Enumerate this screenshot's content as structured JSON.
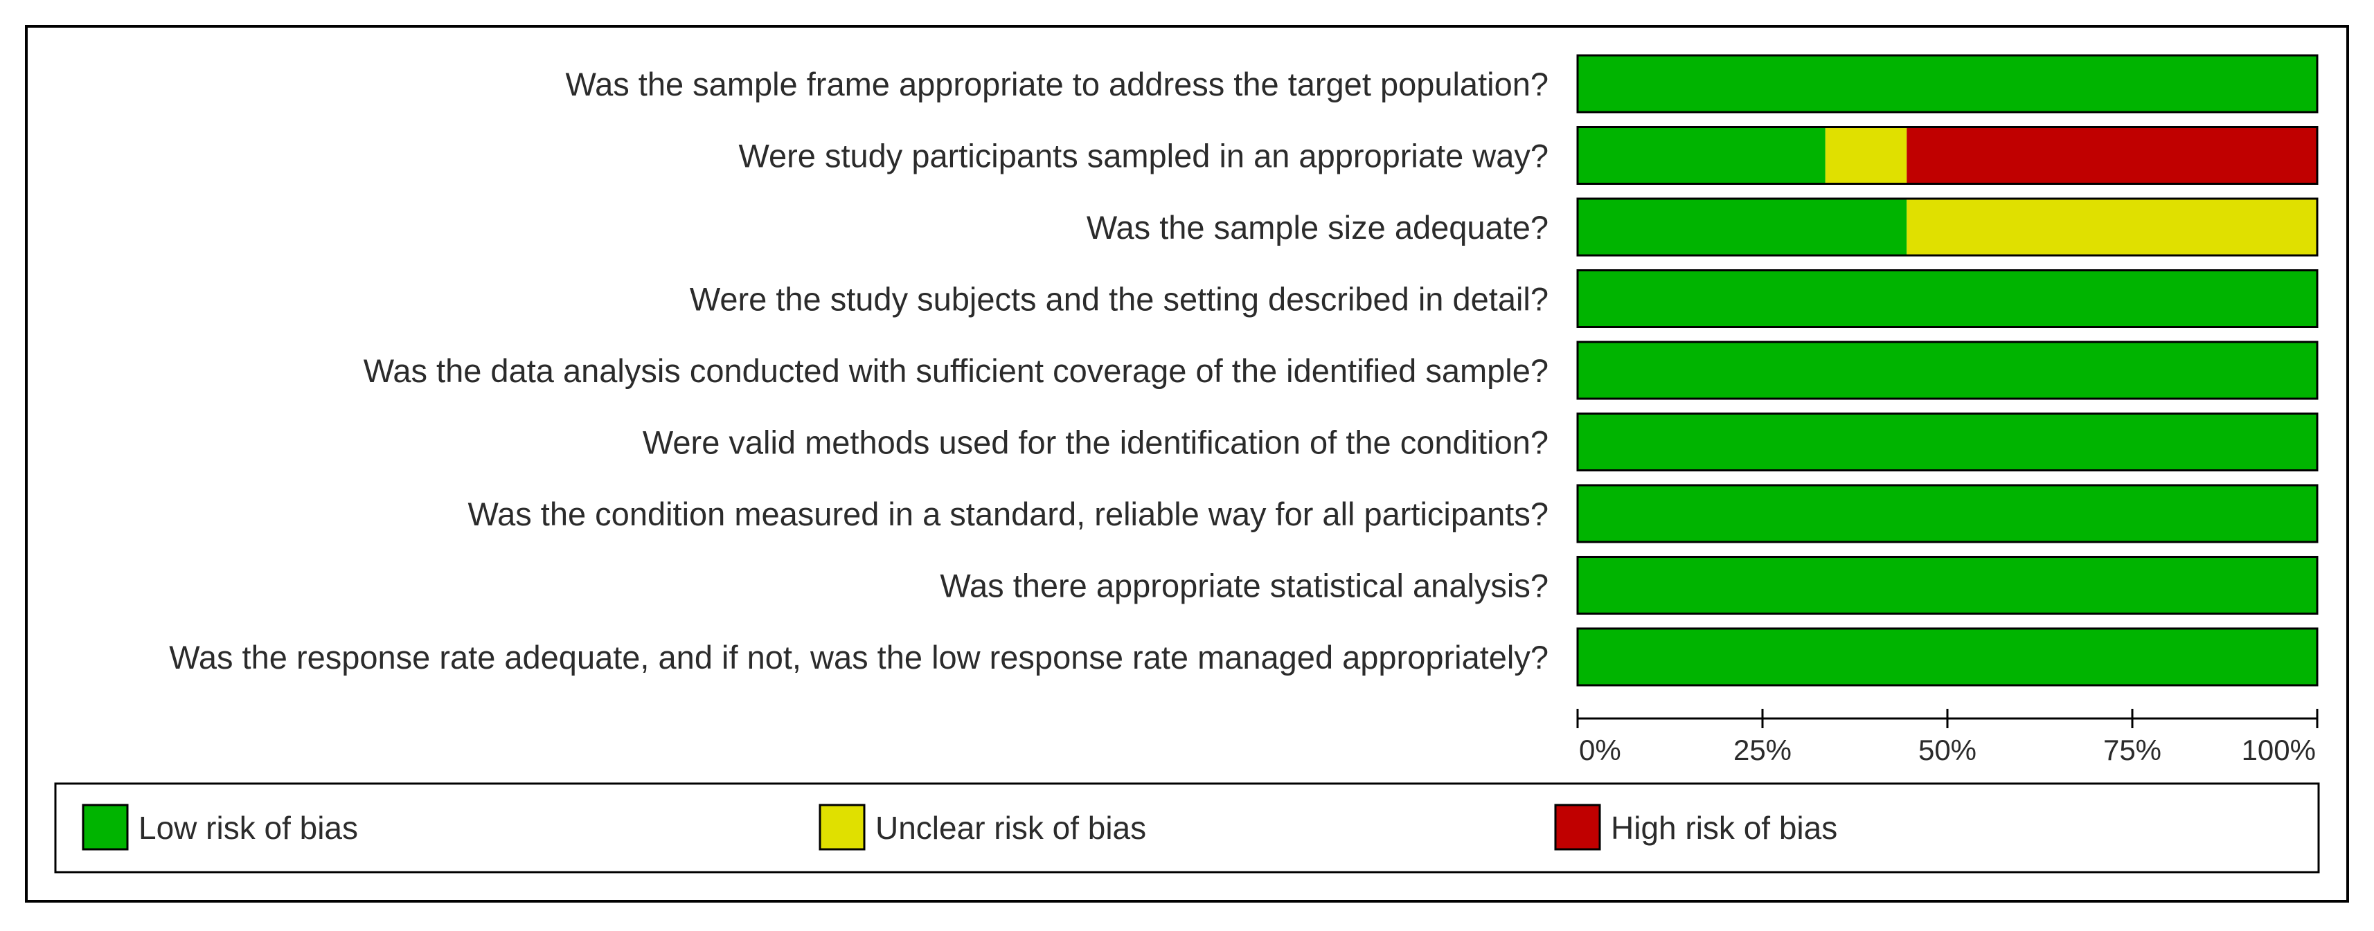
{
  "chart_data": {
    "type": "bar",
    "orientation": "horizontal",
    "stacked": true,
    "categories": [
      "Was the sample frame appropriate to address the target population?",
      "Were study participants sampled in an appropriate way?",
      "Was the sample size adequate?",
      "Were the study subjects and the setting described in detail?",
      "Was the data analysis conducted with sufficient coverage of the identified sample?",
      "Were valid methods used for the identification of the condition?",
      "Was the condition measured in a standard, reliable way for all participants?",
      "Was there appropriate statistical analysis?",
      "Was the response rate adequate, and if not, was the low response rate managed appropriately?"
    ],
    "series": [
      {
        "name": "Low risk of bias",
        "color": "#00b400",
        "values": [
          100,
          33.5,
          44.5,
          100,
          100,
          100,
          100,
          100,
          100
        ]
      },
      {
        "name": "Unclear risk of bias",
        "color": "#e0e000",
        "values": [
          0,
          11,
          55.5,
          0,
          0,
          0,
          0,
          0,
          0
        ]
      },
      {
        "name": "High risk of bias",
        "color": "#c00000",
        "values": [
          0,
          55.5,
          0,
          0,
          0,
          0,
          0,
          0,
          0
        ]
      }
    ],
    "xlim": [
      0,
      100
    ],
    "xticks": [
      0,
      25,
      50,
      75,
      100
    ],
    "xtick_labels": [
      "0%",
      "25%",
      "50%",
      "75%",
      "100%"
    ],
    "grid": false,
    "legend_position": "bottom"
  }
}
